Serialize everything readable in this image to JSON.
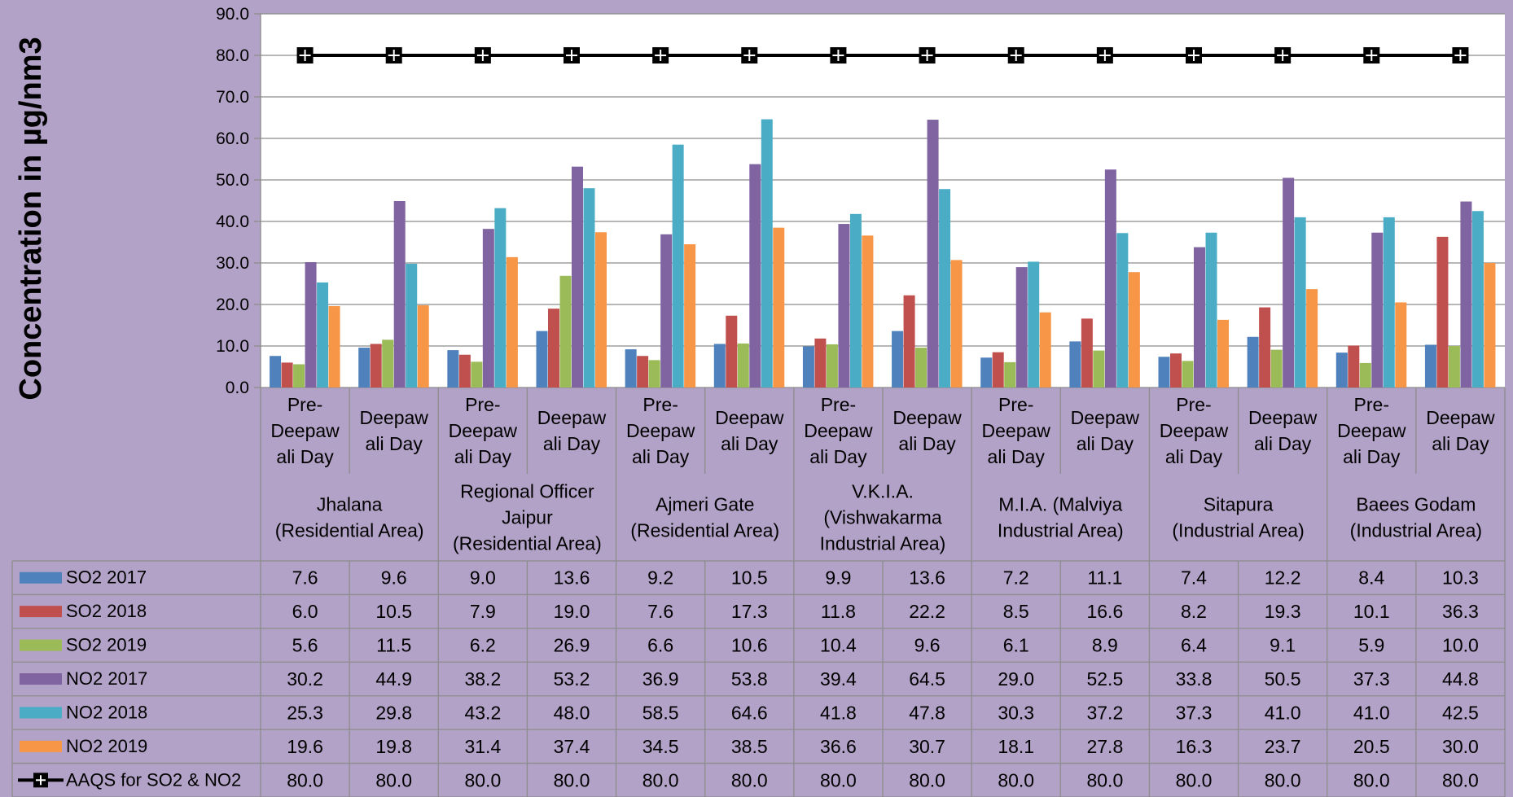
{
  "chart_data": {
    "type": "bar",
    "title": "",
    "xlabel": "",
    "ylabel": "Concentration in µg/nm3",
    "ylim": [
      0,
      90
    ],
    "ytick_step": 10,
    "ytick_labels": [
      "0.0",
      "10.0",
      "20.0",
      "30.0",
      "40.0",
      "50.0",
      "60.0",
      "70.0",
      "80.0",
      "90.0"
    ],
    "grid": true,
    "legend": "data-table",
    "groups": [
      {
        "label": "Jhalana (Residential Area)",
        "lines": [
          "Jhalana",
          "(Residential Area)"
        ]
      },
      {
        "label": "Regional Officer Jaipur (Residential Area)",
        "lines": [
          "Regional Officer",
          "Jaipur",
          "(Residential Area)"
        ]
      },
      {
        "label": "Ajmeri Gate (Residential Area)",
        "lines": [
          "Ajmeri Gate",
          "(Residential Area)"
        ]
      },
      {
        "label": "V.K.I.A. (Vishwakarma Industrial Area)",
        "lines": [
          "V.K.I.A.",
          "(Vishwakarma",
          "Industrial Area)"
        ]
      },
      {
        "label": "M.I.A. (Malviya Industrial Area)",
        "lines": [
          "M.I.A. (Malviya",
          "Industrial Area)"
        ]
      },
      {
        "label": "Sitapura (Industrial Area)",
        "lines": [
          "Sitapura",
          "(Industrial Area)"
        ]
      },
      {
        "label": "Baees Godam (Industrial Area)",
        "lines": [
          "Baees Godam",
          "(Industrial Area)"
        ]
      }
    ],
    "subcategories": [
      {
        "label": "Pre-Deepawali Day",
        "lines": [
          "Pre-",
          "Deepaw",
          "ali Day"
        ]
      },
      {
        "label": "Deepawali Day",
        "lines": [
          "Deepaw",
          "ali Day"
        ]
      }
    ],
    "series": [
      {
        "name": "SO2 2017",
        "type": "bar",
        "color": "#4f81bd",
        "values": [
          7.6,
          9.6,
          9.0,
          13.6,
          9.2,
          10.5,
          9.9,
          13.6,
          7.2,
          11.1,
          7.4,
          12.2,
          8.4,
          10.3
        ],
        "labels": [
          "7.6",
          "9.6",
          "9.0",
          "13.6",
          "9.2",
          "10.5",
          "9.9",
          "13.6",
          "7.2",
          "11.1",
          "7.4",
          "12.2",
          "8.4",
          "10.3"
        ]
      },
      {
        "name": "SO2 2018",
        "type": "bar",
        "color": "#c0504d",
        "values": [
          6.0,
          10.5,
          7.9,
          19.0,
          7.6,
          17.3,
          11.8,
          22.2,
          8.5,
          16.6,
          8.2,
          19.3,
          10.1,
          36.3
        ],
        "labels": [
          "6.0",
          "10.5",
          "7.9",
          "19.0",
          "7.6",
          "17.3",
          "11.8",
          "22.2",
          "8.5",
          "16.6",
          "8.2",
          "19.3",
          "10.1",
          "36.3"
        ]
      },
      {
        "name": "SO2 2019",
        "type": "bar",
        "color": "#9bbb59",
        "values": [
          5.6,
          11.5,
          6.2,
          26.9,
          6.6,
          10.6,
          10.4,
          9.6,
          6.1,
          8.9,
          6.4,
          9.1,
          5.9,
          10.0
        ],
        "labels": [
          "5.6",
          "11.5",
          "6.2",
          "26.9",
          "6.6",
          "10.6",
          "10.4",
          "9.6",
          "6.1",
          "8.9",
          "6.4",
          "9.1",
          "5.9",
          "10.0"
        ]
      },
      {
        "name": "NO2 2017",
        "type": "bar",
        "color": "#8064a2",
        "values": [
          30.2,
          44.9,
          38.2,
          53.2,
          36.9,
          53.8,
          39.4,
          64.5,
          29.0,
          52.5,
          33.8,
          50.5,
          37.3,
          44.8
        ],
        "labels": [
          "30.2",
          "44.9",
          "38.2",
          "53.2",
          "36.9",
          "53.8",
          "39.4",
          "64.5",
          "29.0",
          "52.5",
          "33.8",
          "50.5",
          "37.3",
          "44.8"
        ]
      },
      {
        "name": "NO2 2018",
        "type": "bar",
        "color": "#4bacc6",
        "values": [
          25.3,
          29.8,
          43.2,
          48.0,
          58.5,
          64.6,
          41.8,
          47.8,
          30.3,
          37.2,
          37.3,
          41.0,
          41.0,
          42.5
        ],
        "labels": [
          "25.3",
          "29.8",
          "43.2",
          "48.0",
          "58.5",
          "64.6",
          "41.8",
          "47.8",
          "30.3",
          "37.2",
          "37.3",
          "41.0",
          "41.0",
          "42.5"
        ]
      },
      {
        "name": "NO2 2019",
        "type": "bar",
        "color": "#f79646",
        "values": [
          19.6,
          19.8,
          31.4,
          37.4,
          34.5,
          38.5,
          36.6,
          30.7,
          18.1,
          27.8,
          16.3,
          23.7,
          20.5,
          30.0
        ],
        "labels": [
          "19.6",
          "19.8",
          "31.4",
          "37.4",
          "34.5",
          "38.5",
          "36.6",
          "30.7",
          "18.1",
          "27.8",
          "16.3",
          "23.7",
          "20.5",
          "30.0"
        ]
      },
      {
        "name": "AAQS for SO2  & NO2",
        "type": "line",
        "color": "#000000",
        "marker": "square-cross",
        "values": [
          80,
          80,
          80,
          80,
          80,
          80,
          80,
          80,
          80,
          80,
          80,
          80,
          80,
          80
        ],
        "labels": [
          "80.0",
          "80.0",
          "80.0",
          "80.0",
          "80.0",
          "80.0",
          "80.0",
          "80.0",
          "80.0",
          "80.0",
          "80.0",
          "80.0",
          "80.0",
          "80.0"
        ]
      }
    ],
    "colors": {
      "page_background": "#b3a2c7",
      "plot_background": "#ffffff",
      "gridline": "#8c8c8c",
      "table_border": "#8c8c8c"
    }
  }
}
